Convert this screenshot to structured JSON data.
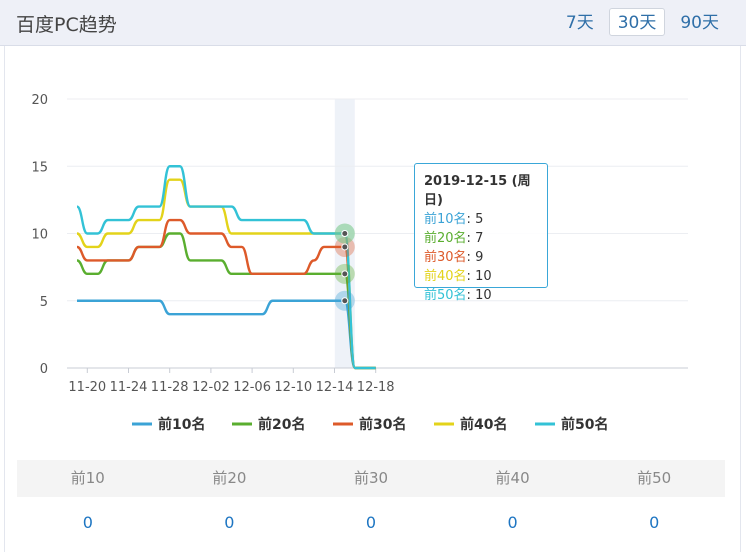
{
  "header": {
    "title": "百度PC趋势",
    "tabs": [
      "7天",
      "30天",
      "90天"
    ],
    "active_tab": "30天"
  },
  "colors": {
    "top10": "#3ba3d6",
    "top20": "#5aae2f",
    "top30": "#dd5a2a",
    "top40": "#e3d31a",
    "top50": "#33c2d6",
    "highlight_band": "#eef2f8"
  },
  "tooltip": {
    "title": "2019-12-15 (周日)",
    "rows": [
      {
        "label": "前10名",
        "value": "5"
      },
      {
        "label": "前20名",
        "value": "7"
      },
      {
        "label": "前30名",
        "value": "9"
      },
      {
        "label": "前40名",
        "value": "10"
      },
      {
        "label": "前50名",
        "value": "10"
      }
    ]
  },
  "chart_data": {
    "type": "line",
    "ylim": [
      0,
      20
    ],
    "yticks": [
      "0",
      "5",
      "10",
      "15",
      "20"
    ],
    "x": [
      "11-19",
      "11-20",
      "11-21",
      "11-22",
      "11-23",
      "11-24",
      "11-25",
      "11-26",
      "11-27",
      "11-28",
      "11-29",
      "11-30",
      "12-01",
      "12-02",
      "12-03",
      "12-04",
      "12-05",
      "12-06",
      "12-07",
      "12-08",
      "12-09",
      "12-10",
      "12-11",
      "12-12",
      "12-13",
      "12-14",
      "12-15",
      "12-16",
      "12-17",
      "12-18"
    ],
    "xticks": [
      "11-20",
      "11-24",
      "11-28",
      "12-02",
      "12-06",
      "12-10",
      "12-14",
      "12-18"
    ],
    "highlight": "12-15",
    "grid": true,
    "legend_position": "bottom",
    "series": [
      {
        "name": "前10名",
        "color": "#3ba3d6",
        "values": [
          5,
          5,
          5,
          5,
          5,
          5,
          5,
          5,
          5,
          4,
          4,
          4,
          4,
          4,
          4,
          4,
          4,
          4,
          4,
          5,
          5,
          5,
          5,
          5,
          5,
          5,
          5,
          0,
          0,
          0
        ]
      },
      {
        "name": "前20名",
        "color": "#5aae2f",
        "values": [
          8,
          7,
          7,
          8,
          8,
          8,
          9,
          9,
          9,
          10,
          10,
          8,
          8,
          8,
          8,
          7,
          7,
          7,
          7,
          7,
          7,
          7,
          7,
          7,
          7,
          7,
          7,
          0,
          0,
          0
        ]
      },
      {
        "name": "前30名",
        "color": "#dd5a2a",
        "values": [
          9,
          8,
          8,
          8,
          8,
          8,
          9,
          9,
          9,
          11,
          11,
          10,
          10,
          10,
          10,
          9,
          9,
          7,
          7,
          7,
          7,
          7,
          7,
          8,
          9,
          9,
          9,
          0,
          0,
          0
        ]
      },
      {
        "name": "前40名",
        "color": "#e3d31a",
        "values": [
          10,
          9,
          9,
          10,
          10,
          10,
          11,
          11,
          11,
          14,
          14,
          12,
          12,
          12,
          12,
          10,
          10,
          10,
          10,
          10,
          10,
          10,
          10,
          10,
          10,
          10,
          10,
          0,
          0,
          0
        ]
      },
      {
        "name": "前50名",
        "color": "#33c2d6",
        "values": [
          12,
          10,
          10,
          11,
          11,
          11,
          12,
          12,
          12,
          15,
          15,
          12,
          12,
          12,
          12,
          12,
          11,
          11,
          11,
          11,
          11,
          11,
          11,
          10,
          10,
          10,
          10,
          0,
          0,
          0
        ]
      }
    ]
  },
  "stats": {
    "headers": [
      "前10",
      "前20",
      "前30",
      "前40",
      "前50"
    ],
    "values": [
      "0",
      "0",
      "0",
      "0",
      "0"
    ]
  }
}
